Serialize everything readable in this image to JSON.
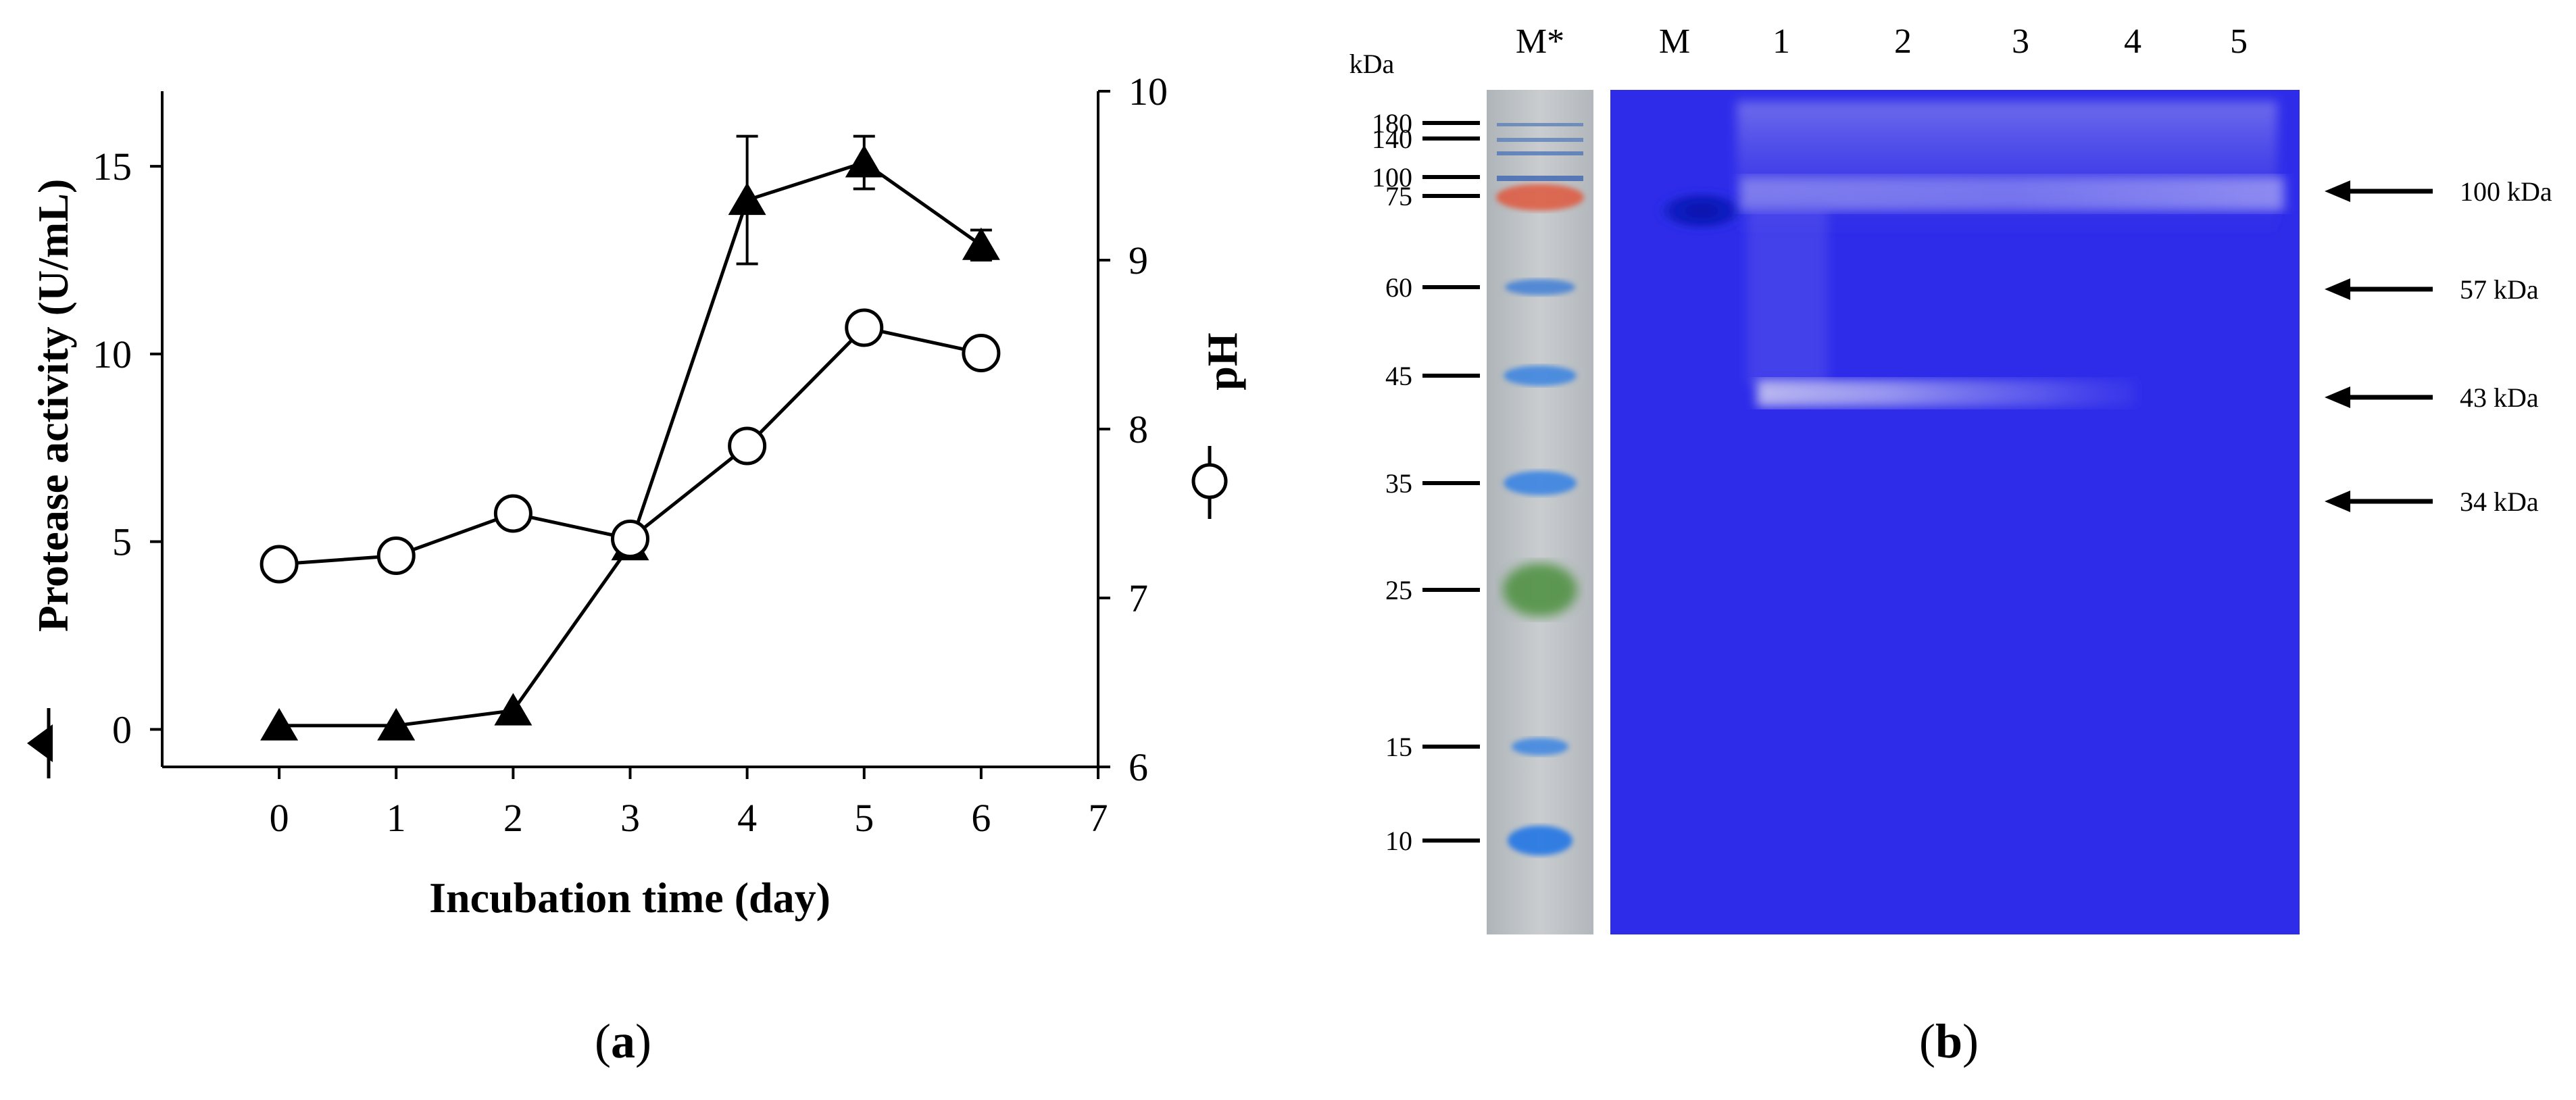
{
  "chart_data": [
    {
      "type": "line",
      "xlabel": "Incubation time (day)",
      "ylabel": "Protease activity (U/mL)",
      "y2label": "pH",
      "xlim": [
        -1,
        7
      ],
      "xticks": [
        0,
        1,
        2,
        3,
        4,
        5,
        6,
        7
      ],
      "ylim": [
        -1,
        17
      ],
      "yticks": [
        0,
        5,
        10,
        15
      ],
      "y2lim": [
        6,
        10
      ],
      "y2ticks": [
        6,
        7,
        8,
        9,
        10
      ],
      "grid": false,
      "series": [
        {
          "marker": "filled-triangle",
          "axis": "left",
          "x": [
            0,
            1,
            2,
            3,
            4,
            5,
            6
          ],
          "y": [
            0.1,
            0.1,
            0.5,
            4.9,
            14.1,
            15.1,
            12.9
          ],
          "err": [
            0,
            0,
            0,
            0,
            1.7,
            0.7,
            0.4
          ]
        },
        {
          "marker": "open-circle",
          "axis": "right",
          "x": [
            0,
            1,
            2,
            3,
            4,
            5,
            6
          ],
          "y": [
            7.2,
            7.25,
            7.5,
            7.35,
            7.9,
            8.6,
            8.45
          ]
        }
      ],
      "legend_markers": [
        "filled-triangle",
        "open-circle"
      ],
      "panel_label": "a"
    },
    {
      "type": "gel",
      "unit_label": "kDa",
      "lane_labels": [
        "M*",
        "M",
        "1",
        "2",
        "3",
        "4",
        "5"
      ],
      "marker_sizes": [
        180,
        140,
        100,
        75,
        60,
        45,
        35,
        25,
        15,
        10
      ],
      "arrow_labels": [
        "100 kDa",
        "57 kDa",
        "43 kDa",
        "34 kDa"
      ],
      "panel_label": "b"
    }
  ]
}
